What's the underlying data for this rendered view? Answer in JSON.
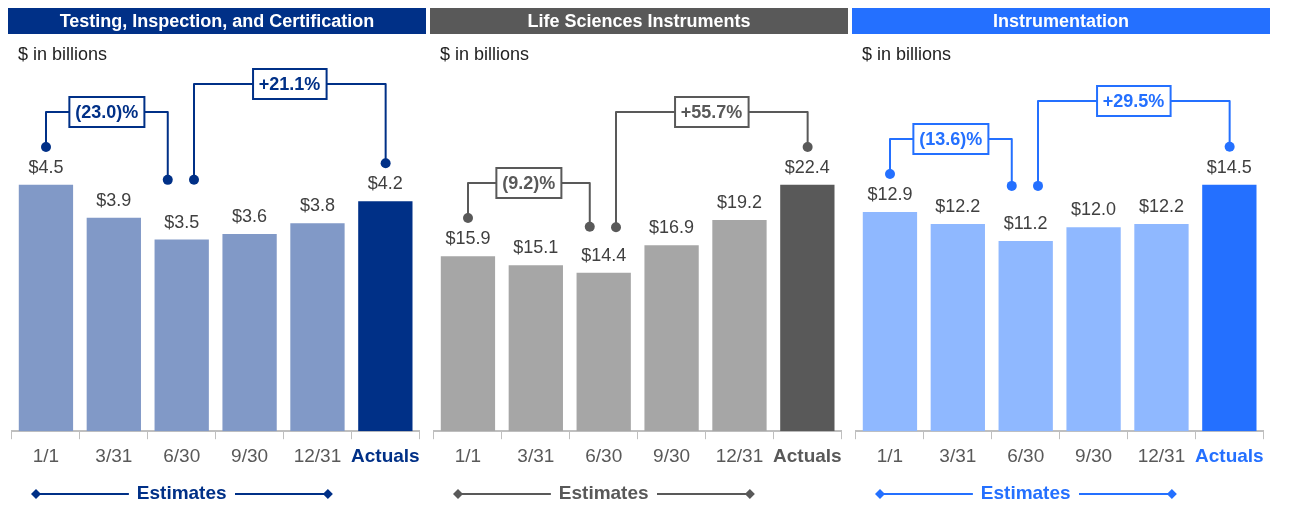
{
  "chart_data": [
    {
      "type": "bar",
      "title": "Testing, Inspection, and Certification",
      "subtitle": "$ in billions",
      "categories": [
        "1/1",
        "3/31",
        "6/30",
        "9/30",
        "12/31",
        "Actuals"
      ],
      "values": [
        4.5,
        3.9,
        3.5,
        3.6,
        3.8,
        4.2
      ],
      "value_labels": [
        "$4.5",
        "$3.9",
        "$3.5",
        "$3.6",
        "$3.8",
        "$4.2"
      ],
      "colors": [
        "#8199c7",
        "#8199c7",
        "#8199c7",
        "#8199c7",
        "#8199c7",
        "#003087"
      ],
      "annotations": [
        "(23.0)%",
        "+21.1%",
        "Estimates"
      ],
      "legend": false,
      "grid": false
    },
    {
      "type": "bar",
      "title": "Life Sciences Instruments",
      "subtitle": "$ in billions",
      "categories": [
        "1/1",
        "3/31",
        "6/30",
        "9/30",
        "12/31",
        "Actuals"
      ],
      "values": [
        15.9,
        15.1,
        14.4,
        16.9,
        19.2,
        22.4
      ],
      "value_labels": [
        "$15.9",
        "$15.1",
        "$14.4",
        "$16.9",
        "$19.2",
        "$22.4"
      ],
      "colors": [
        "#a6a6a6",
        "#a6a6a6",
        "#a6a6a6",
        "#a6a6a6",
        "#a6a6a6",
        "#595959"
      ],
      "annotations": [
        "(9.2)%",
        "+55.7%",
        "Estimates"
      ],
      "legend": false,
      "grid": false
    },
    {
      "type": "bar",
      "title": "Instrumentation",
      "subtitle": "$ in billions",
      "categories": [
        "1/1",
        "3/31",
        "6/30",
        "9/30",
        "12/31",
        "Actuals"
      ],
      "values": [
        12.9,
        12.2,
        11.2,
        12.0,
        12.2,
        14.5
      ],
      "value_labels": [
        "$12.9",
        "$12.2",
        "$11.2",
        "$12.0",
        "$12.2",
        "$14.5"
      ],
      "colors": [
        "#8fb8ff",
        "#8fb8ff",
        "#8fb8ff",
        "#8fb8ff",
        "#8fb8ff",
        "#2470ff"
      ],
      "annotations": [
        "(13.6)%",
        "+29.5%",
        "Estimates"
      ],
      "legend": false,
      "grid": false
    }
  ]
}
